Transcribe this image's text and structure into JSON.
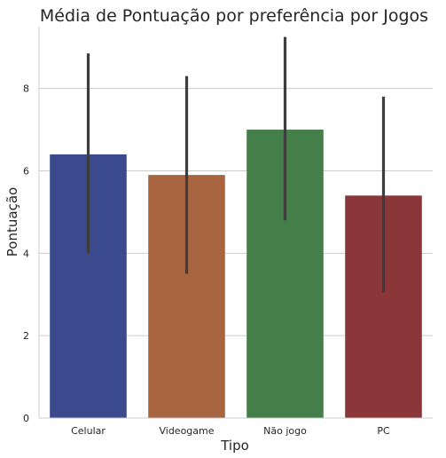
{
  "chart_data": {
    "type": "bar",
    "title": "Média de Pontuação por preferência por Jogos",
    "xlabel": "Tipo",
    "ylabel": "Pontuação",
    "categories": [
      "Celular",
      "Videogame",
      "Não jogo",
      "PC"
    ],
    "values": [
      6.4,
      5.9,
      7.0,
      5.4
    ],
    "error_low": [
      4.0,
      3.5,
      4.8,
      3.05
    ],
    "error_high": [
      8.85,
      8.3,
      9.25,
      7.8
    ],
    "colors": [
      "#3b4a8c",
      "#a9653f",
      "#447e49",
      "#8b3639"
    ],
    "error_color": "#3d3d3d",
    "ylim": [
      0,
      9.5
    ],
    "yticks": [
      0,
      2,
      4,
      6,
      8
    ],
    "grid": "horizontal",
    "legend": "none"
  }
}
